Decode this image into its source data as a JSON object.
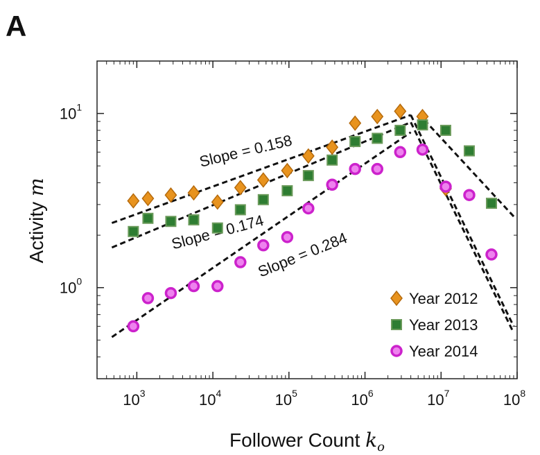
{
  "panel_label": "A",
  "chart_data": {
    "type": "scatter",
    "xscale": "log",
    "yscale": "log",
    "xlim": [
      300,
      100000000
    ],
    "ylim": [
      0.3,
      20
    ],
    "xlabel": {
      "prefix": "Follower Count ",
      "var": "k",
      "sub": "o"
    },
    "ylabel": {
      "prefix": "Activity ",
      "var": "m"
    },
    "xticks": [
      {
        "value": 1000,
        "base": "10",
        "exp": "3"
      },
      {
        "value": 10000,
        "base": "10",
        "exp": "4"
      },
      {
        "value": 100000,
        "base": "10",
        "exp": "5"
      },
      {
        "value": 1000000,
        "base": "10",
        "exp": "6"
      },
      {
        "value": 10000000,
        "base": "10",
        "exp": "7"
      },
      {
        "value": 100000000,
        "base": "10",
        "exp": "8"
      }
    ],
    "yticks": [
      {
        "value": 1,
        "base": "10",
        "exp": "0"
      },
      {
        "value": 10,
        "base": "10",
        "exp": "1"
      }
    ],
    "grid": false,
    "legend_position": "bottom-right",
    "series": [
      {
        "name": "Year 2012",
        "marker": "diamond",
        "color": "#e8931e",
        "stroke": "#b56a0c",
        "x": [
          900,
          1400,
          2800,
          5600,
          11500,
          23000,
          46000,
          95000,
          180000,
          370000,
          740000,
          1450000,
          2900000,
          5700000,
          11500000
        ],
        "y": [
          3.15,
          3.25,
          3.4,
          3.5,
          3.1,
          3.75,
          4.15,
          4.7,
          5.7,
          6.4,
          8.8,
          9.6,
          10.3,
          9.6,
          3.7
        ]
      },
      {
        "name": "Year 2013",
        "marker": "square",
        "color": "#2e7d32",
        "stroke": "#6a9a5a",
        "x": [
          900,
          1400,
          2800,
          5600,
          11500,
          23000,
          46000,
          95000,
          180000,
          370000,
          740000,
          1450000,
          2900000,
          5700000,
          11500000,
          23500000,
          46000000
        ],
        "y": [
          2.1,
          2.5,
          2.4,
          2.45,
          2.2,
          2.8,
          3.2,
          3.6,
          4.4,
          5.4,
          6.9,
          7.2,
          8.0,
          8.6,
          8.0,
          6.1,
          3.05
        ]
      },
      {
        "name": "Year 2014",
        "marker": "circle",
        "color": "#ee82ee",
        "stroke": "#cc22cc",
        "x": [
          900,
          1400,
          2800,
          5600,
          11500,
          23000,
          46000,
          95000,
          180000,
          370000,
          740000,
          1450000,
          2900000,
          5700000,
          11500000,
          23500000,
          46000000
        ],
        "y": [
          0.6,
          0.87,
          0.93,
          1.02,
          1.02,
          1.4,
          1.75,
          1.95,
          2.85,
          3.9,
          4.8,
          4.8,
          6.0,
          6.2,
          3.8,
          3.4,
          1.55
        ]
      }
    ],
    "fit_lines": [
      {
        "label": "Slope = 0.158",
        "points": [
          [
            470,
            2.35
          ],
          [
            4000000,
            9.8
          ]
        ]
      },
      {
        "label": "Slope = 0.174",
        "points": [
          [
            470,
            1.7
          ],
          [
            4000000,
            8.9
          ]
        ]
      },
      {
        "label": "Slope = 0.284",
        "points": [
          [
            470,
            0.52
          ],
          [
            4000000,
            7.8
          ]
        ]
      },
      {
        "label": "",
        "points": [
          [
            6000000,
            9.2
          ],
          [
            95000000,
            2.5
          ]
        ]
      },
      {
        "label": "",
        "points": [
          [
            4000000,
            9.8
          ],
          [
            90000000,
            0.6
          ]
        ]
      },
      {
        "label": "",
        "points": [
          [
            4000000,
            8.9
          ],
          [
            90000000,
            0.55
          ]
        ]
      }
    ],
    "annotations": [
      {
        "text": "Slope = 0.158",
        "x": 28000,
        "y": 5.7,
        "angle": -13.5
      },
      {
        "text": "Slope = 0.174",
        "x": 12000,
        "y": 1.95,
        "angle": -15
      },
      {
        "text": "Slope = 0.284",
        "x": 160000,
        "y": 1.45,
        "angle": -22
      }
    ]
  }
}
